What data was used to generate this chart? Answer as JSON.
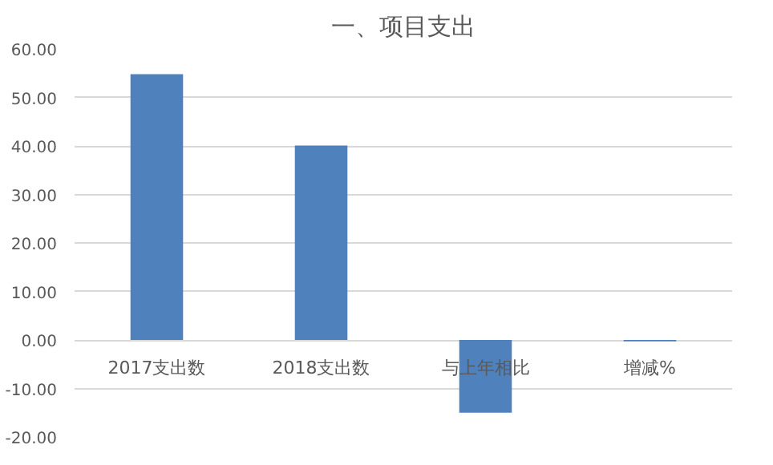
{
  "chart_data": {
    "type": "bar",
    "title": "一、项目支出",
    "categories": [
      "2017支出数",
      "2018支出数",
      "与上年相比",
      "增减%"
    ],
    "values": [
      54.8,
      40.1,
      -15,
      -0.3
    ],
    "color": "#4f81bd",
    "ylim": [
      -20,
      60
    ],
    "yticks": [
      {
        "value": -20,
        "label": "-20.00"
      },
      {
        "value": -10,
        "label": "-10.00"
      },
      {
        "value": 0,
        "label": "0.00"
      },
      {
        "value": 10,
        "label": "10.00"
      },
      {
        "value": 20,
        "label": "20.00"
      },
      {
        "value": 30,
        "label": "30.00"
      },
      {
        "value": 40,
        "label": "40.00"
      },
      {
        "value": 50,
        "label": "50.00"
      },
      {
        "value": 60,
        "label": "60.00"
      }
    ],
    "grid": "y"
  }
}
